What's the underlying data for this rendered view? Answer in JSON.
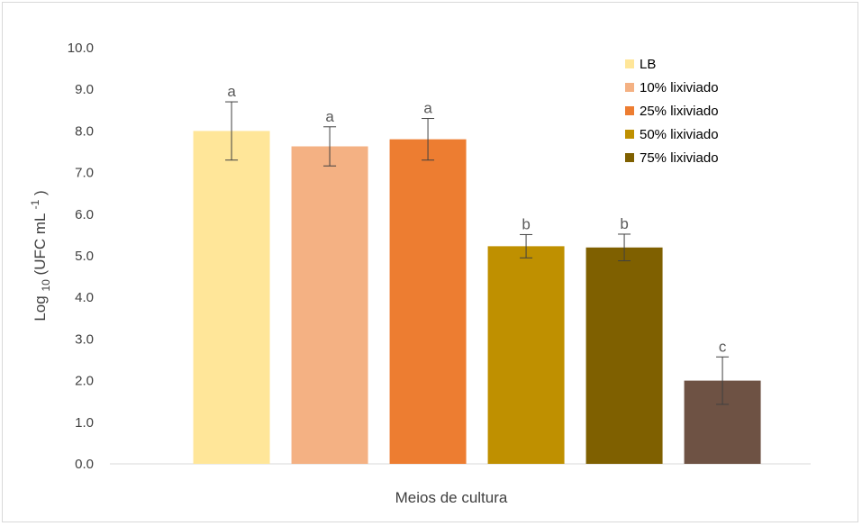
{
  "chart_data": {
    "type": "bar",
    "title": "",
    "xlabel": "Meios de cultura",
    "ylabel": {
      "prefix": "Log",
      "sub": "10",
      "middle": "(UFC mL",
      "sup": "-1",
      "suffix": ")"
    },
    "ylim": [
      0,
      10
    ],
    "y_ticks": [
      "0.0",
      "1.0",
      "2.0",
      "3.0",
      "4.0",
      "5.0",
      "6.0",
      "7.0",
      "8.0",
      "9.0",
      "10.0"
    ],
    "grid": false,
    "legend_position": "top-right",
    "series": [
      {
        "name": "LB",
        "value": 8.0,
        "error": 0.7,
        "significance": "a",
        "color": "#FFE699"
      },
      {
        "name": "10% lixiviado",
        "value": 7.63,
        "error": 0.47,
        "significance": "a",
        "color": "#F4B183"
      },
      {
        "name": "25% lixiviado",
        "value": 7.8,
        "error": 0.5,
        "significance": "a",
        "color": "#ED7D31"
      },
      {
        "name": "50% lixiviado",
        "value": 5.23,
        "error": 0.28,
        "significance": "b",
        "color": "#BF9000"
      },
      {
        "name": "75% lixiviado",
        "value": 5.2,
        "error": 0.32,
        "significance": "b",
        "color": "#7F6000"
      },
      {
        "value": 2.0,
        "error": 0.57,
        "significance": "c",
        "color": "#6E5244"
      }
    ]
  }
}
